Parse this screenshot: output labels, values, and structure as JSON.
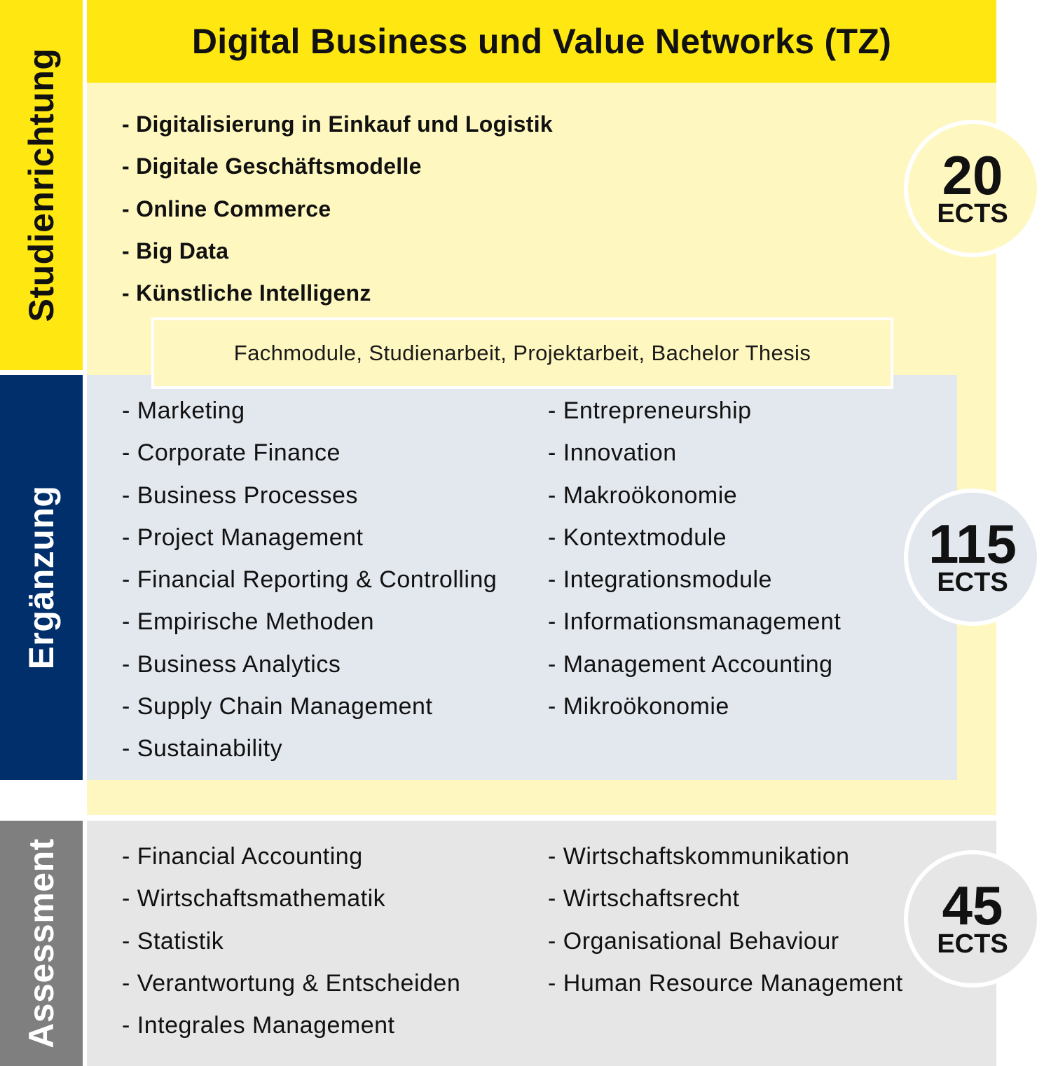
{
  "colors": {
    "yellow": "#FFE812",
    "light_yellow": "#FEF7BF",
    "navy": "#002F6C",
    "light_blue_grey": "#E3E8EF",
    "grey": "#7F7F7F",
    "light_grey": "#E6E6E6"
  },
  "side_labels": {
    "studienrichtung": "Studienrichtung",
    "ergaenzung": "Ergänzung",
    "assessment": "Assessment"
  },
  "title": "Digital Business und Value Networks (TZ)",
  "studienrichtung": {
    "items": [
      "- Digitalisierung in Einkauf und Logistik",
      "- Digitale Geschäftsmodelle",
      "- Online Commerce",
      "- Big Data",
      "- Künstliche Intelligenz"
    ],
    "ects_value": "20",
    "ects_unit": "ECTS"
  },
  "fachmodule": "Fachmodule, Studienarbeit, Projektarbeit, Bachelor Thesis",
  "ergaenzung": {
    "left_items": [
      "- Marketing",
      "- Corporate Finance",
      "- Business Processes",
      "- Project Management",
      "- Financial Reporting & Controlling",
      "- Empirische Methoden",
      "- Business Analytics",
      "- Supply Chain Management",
      "- Sustainability"
    ],
    "right_items": [
      "- Entrepreneurship",
      "- Innovation",
      "- Makroökonomie",
      "- Kontextmodule",
      "- Integrationsmodule",
      "- Informationsmanagement",
      "- Management Accounting",
      "- Mikroökonomie"
    ],
    "ects_value": "115",
    "ects_unit": "ECTS"
  },
  "assessment": {
    "left_items": [
      "- Financial Accounting",
      "- Wirtschaftsmathematik",
      "- Statistik",
      "- Verantwortung & Entscheiden",
      "- Integrales Management"
    ],
    "right_items": [
      "- Wirtschaftskommunikation",
      "- Wirtschaftsrecht",
      "- Organisational Behaviour",
      "- Human Resource Management"
    ],
    "ects_value": "45",
    "ects_unit": "ECTS"
  }
}
